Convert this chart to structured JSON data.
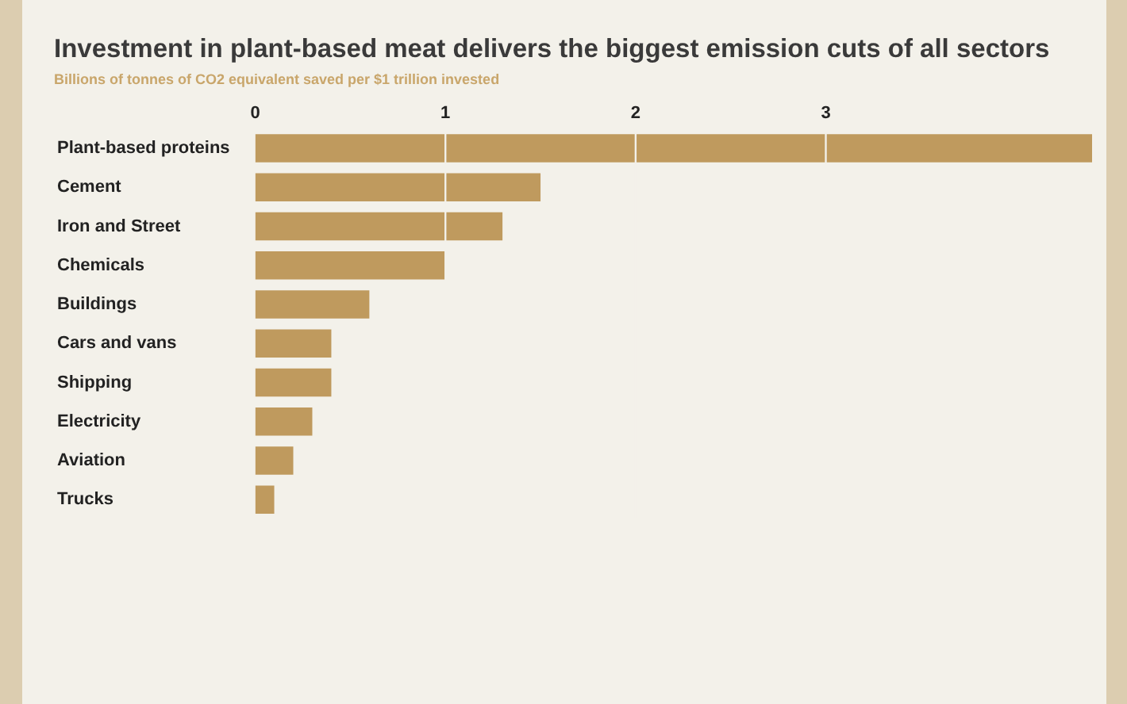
{
  "chart_data": {
    "type": "bar",
    "orientation": "horizontal",
    "title": "Investment in plant-based meat delivers the biggest emission cuts of all sectors",
    "subtitle": "Billions of tonnes of CO2 equivalent saved per $1 trillion invested",
    "categories": [
      "Plant-based proteins",
      "Cement",
      "Iron and Street",
      "Chemicals",
      "Buildings",
      "Cars and vans",
      "Shipping",
      "Electricity",
      "Aviation",
      "Trucks"
    ],
    "values": [
      4.4,
      1.5,
      1.3,
      1.0,
      0.6,
      0.4,
      0.4,
      0.3,
      0.2,
      0.1
    ],
    "color": "#bf9a5e",
    "xlim": [
      0,
      4.4
    ],
    "xticks": [
      0,
      1,
      2,
      3
    ],
    "grid": "x",
    "legend": false
  }
}
